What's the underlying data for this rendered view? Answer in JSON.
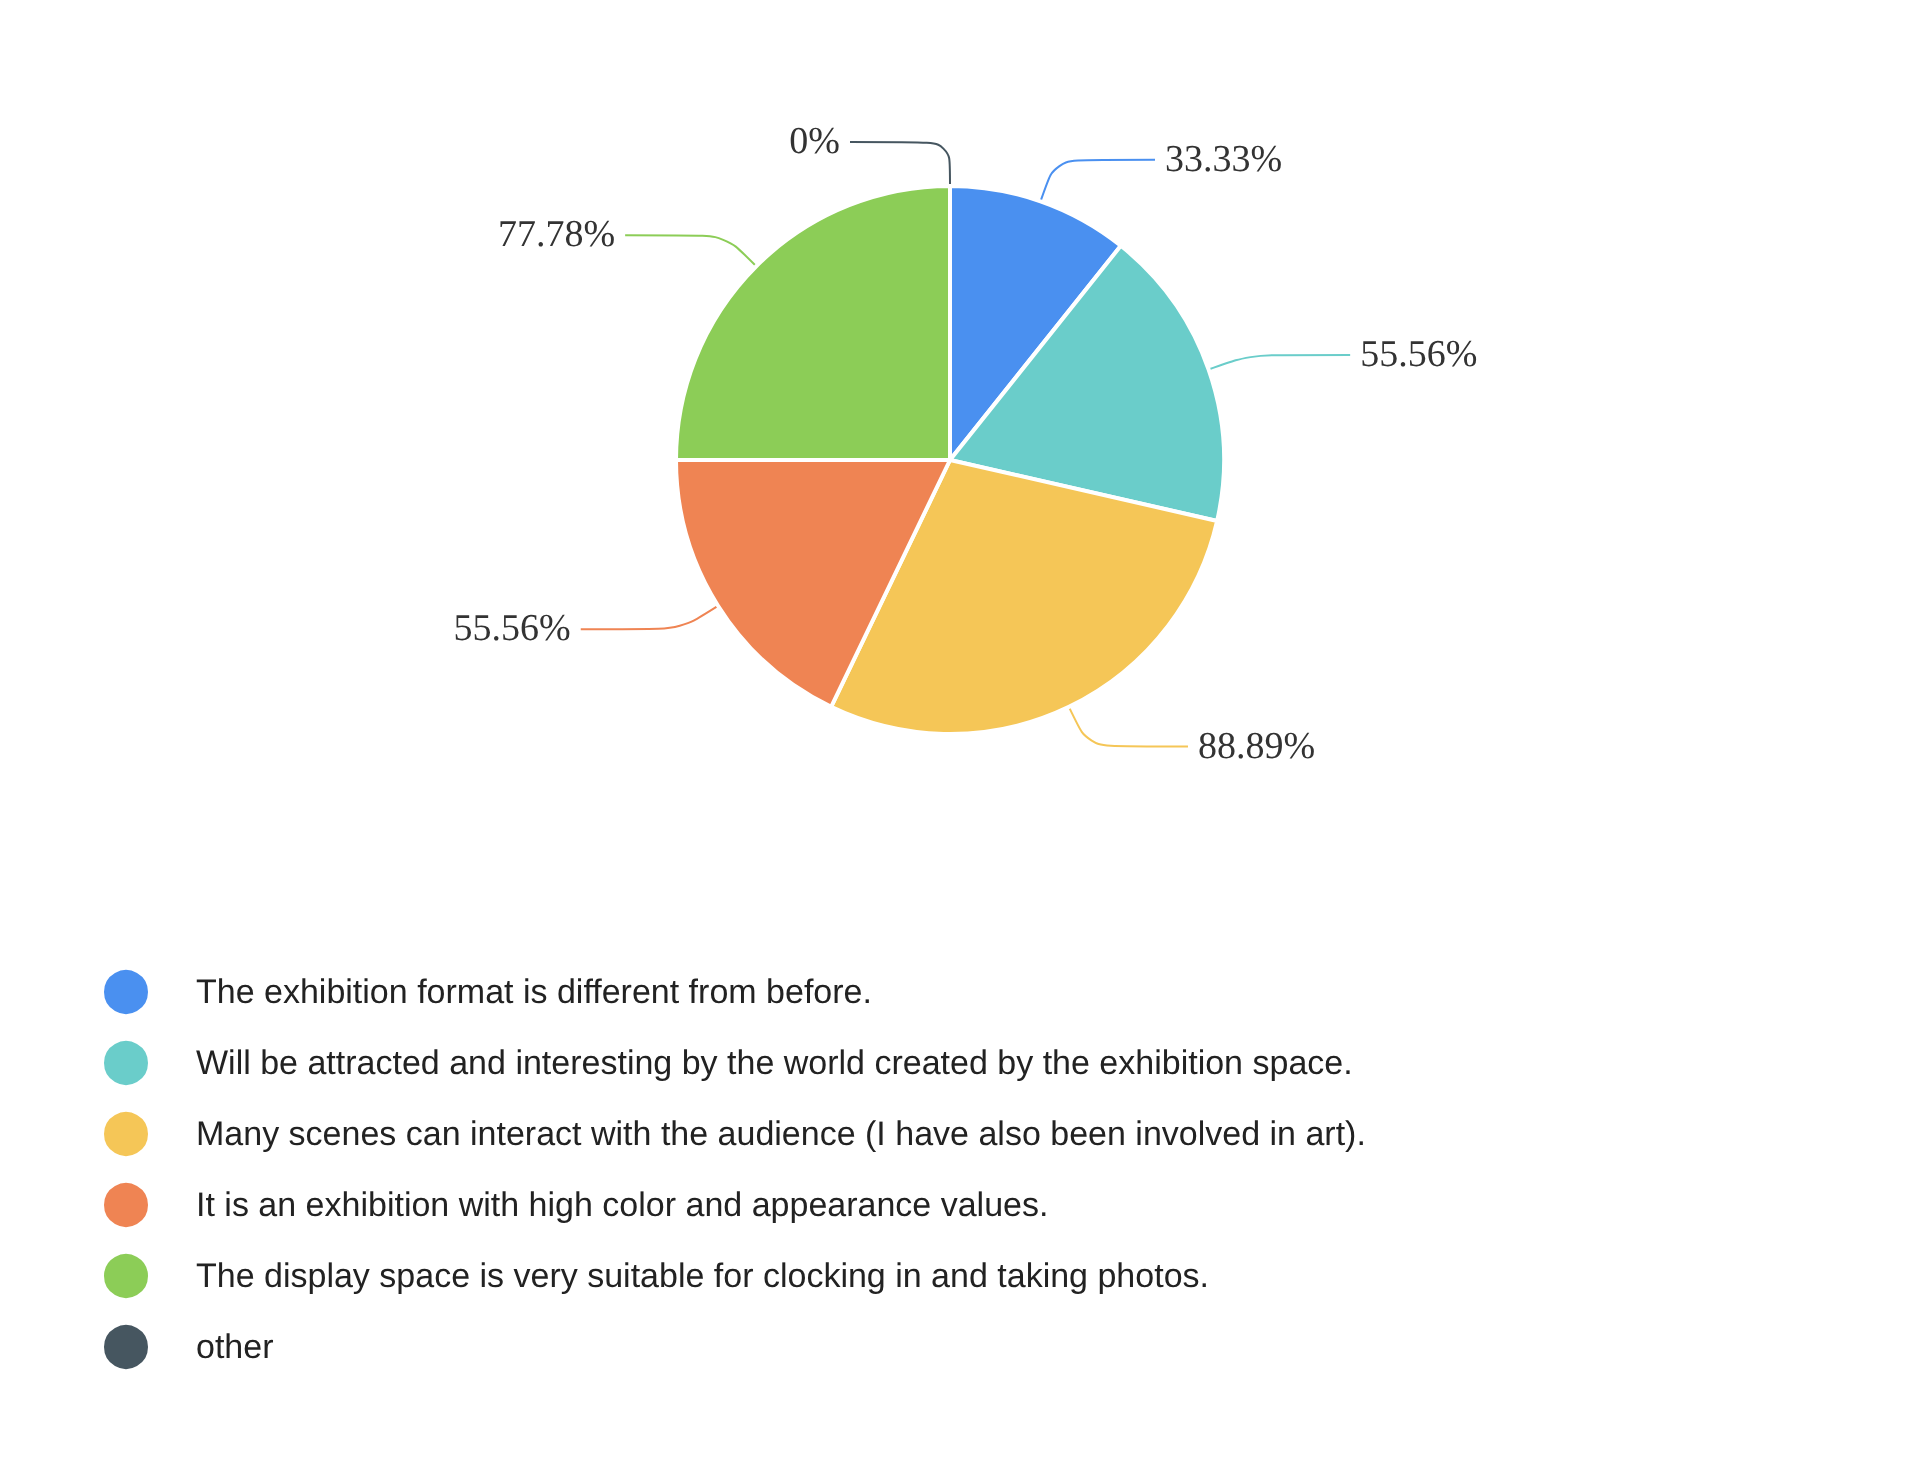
{
  "chart_data": {
    "type": "pie",
    "categories": [
      "The exhibition format is different from before.",
      "Will be attracted and interesting by the world created by the exhibition space.",
      "Many scenes can interact with the audience (I have also been involved in art).",
      "It is an exhibition with high color and appearance values.",
      "The display space is very suitable for clocking in and taking photos.",
      "other"
    ],
    "values": [
      33.33,
      55.56,
      88.89,
      55.56,
      77.78,
      0
    ],
    "value_labels": [
      "33.33%",
      "55.56%",
      "88.89%",
      "55.56%",
      "77.78%",
      "0%"
    ],
    "colors": [
      "#4a90f0",
      "#6acdca",
      "#f5c657",
      "#ef8453",
      "#8ccd57",
      "#465660"
    ],
    "legend": "bottom"
  }
}
